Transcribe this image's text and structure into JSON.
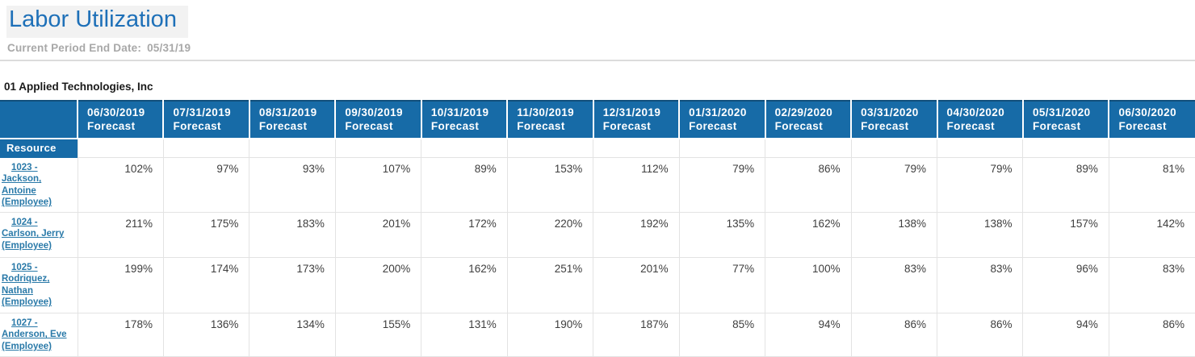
{
  "page": {
    "title": "Labor Utilization",
    "current_period_label": "Current Period End Date:",
    "current_period_value": "05/31/19",
    "company": "01 Applied Technologies, Inc"
  },
  "table": {
    "resource_header": "Resource",
    "column_sublabel": "Forecast",
    "columns": [
      "06/30/2019",
      "07/31/2019",
      "08/31/2019",
      "09/30/2019",
      "10/31/2019",
      "11/30/2019",
      "12/31/2019",
      "01/31/2020",
      "02/29/2020",
      "03/31/2020",
      "04/30/2020",
      "05/31/2020",
      "06/30/2020"
    ],
    "rows": [
      {
        "resource": "1023 - Jackson, Antoine (Employee)",
        "values": [
          "102%",
          "97%",
          "93%",
          "107%",
          "89%",
          "153%",
          "112%",
          "79%",
          "86%",
          "79%",
          "79%",
          "89%",
          "81%"
        ]
      },
      {
        "resource": "1024 - Carlson, Jerry (Employee)",
        "values": [
          "211%",
          "175%",
          "183%",
          "201%",
          "172%",
          "220%",
          "192%",
          "135%",
          "162%",
          "138%",
          "138%",
          "157%",
          "142%"
        ]
      },
      {
        "resource": "1025 - Rodriquez, Nathan (Employee)",
        "values": [
          "199%",
          "174%",
          "173%",
          "200%",
          "162%",
          "251%",
          "201%",
          "77%",
          "100%",
          "83%",
          "83%",
          "96%",
          "83%"
        ]
      },
      {
        "resource": "1027 - Anderson, Eve (Employee)",
        "values": [
          "178%",
          "136%",
          "134%",
          "155%",
          "131%",
          "190%",
          "187%",
          "85%",
          "94%",
          "86%",
          "86%",
          "94%",
          "86%"
        ]
      }
    ]
  },
  "colors": {
    "title_blue": "#1E70B8",
    "header_blue": "#176BA7",
    "header_top_border": "#124F7B",
    "link_blue": "#2979A8",
    "grid_line": "#E3E3E3",
    "muted_text": "#A8A8A8"
  }
}
